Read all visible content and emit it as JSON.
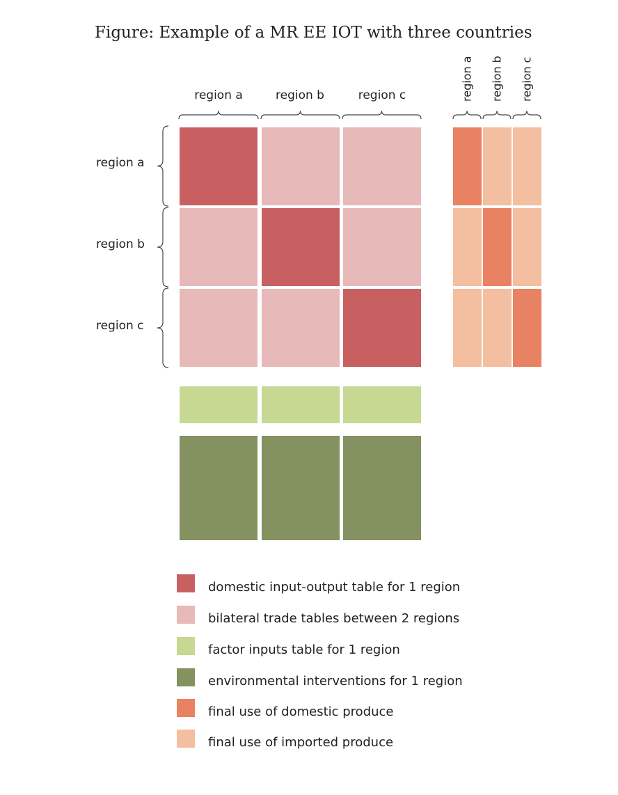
{
  "title": "Figure: Example of a MR EE IOT with three countries",
  "column_labels": [
    "region a",
    "region b",
    "region c"
  ],
  "row_labels": [
    "region a",
    "region b",
    "region c"
  ],
  "final_use_labels": [
    "region a",
    "region b",
    "region c"
  ],
  "colors": {
    "domestic": "#c86062",
    "bilateral": "#e8b9b9",
    "factor": "#c6d892",
    "environmental": "#849160",
    "final_domestic": "#e98262",
    "final_imported": "#f4bea0",
    "brace": "#444444"
  },
  "legend": [
    {
      "label": "domestic input-output table for 1 region",
      "color": "#c86062"
    },
    {
      "label": "bilateral trade tables between 2 regions",
      "color": "#e8b9b9"
    },
    {
      "label": "factor inputs table for 1 region",
      "color": "#c6d892"
    },
    {
      "label": "environmental interventions for 1 region",
      "color": "#849160"
    },
    {
      "label": "final use of domestic produce",
      "color": "#e98262"
    },
    {
      "label": "final use of imported produce",
      "color": "#f4bea0"
    }
  ]
}
